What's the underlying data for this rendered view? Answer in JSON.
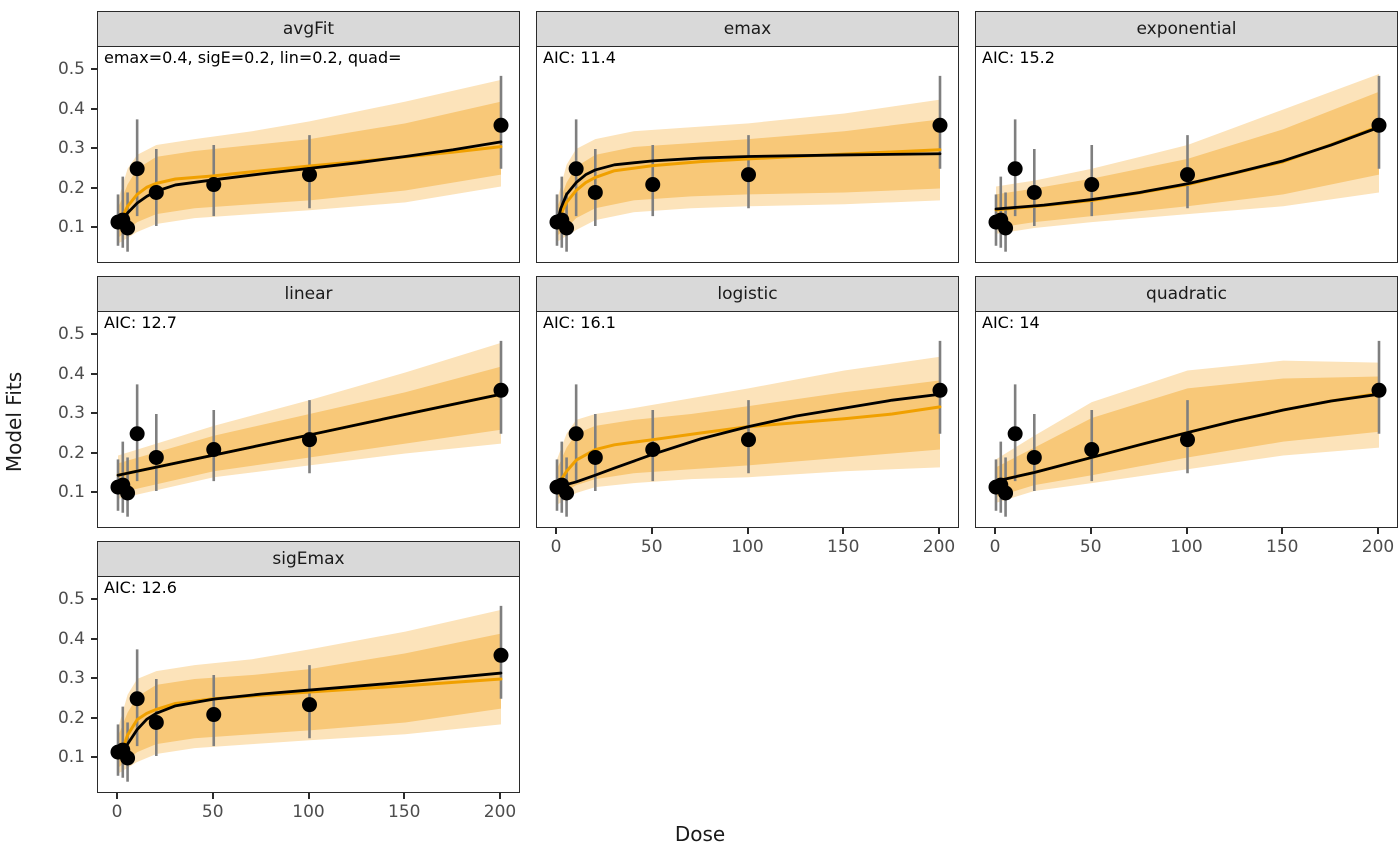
{
  "chart_data": {
    "type": "line",
    "title": "",
    "xlabel": "Dose",
    "ylabel": "Model Fits",
    "x_ticks": [
      0,
      50,
      100,
      150,
      200
    ],
    "y_ticks": [
      0.5,
      0.4,
      0.3,
      0.2,
      0.1
    ],
    "xlim": [
      0,
      200
    ],
    "ylim": [
      0.011,
      0.558
    ],
    "grid": false,
    "legend": "none",
    "colors": {
      "fit_line_black": "#000000",
      "median_line_orange": "#f0a000",
      "ribbon_inner": "#f8c878",
      "ribbon_outer": "#fce3ba",
      "errorbar_gray": "#7f7f7f",
      "strip_bg": "#d9d9d9",
      "panel_border": "#2b2b2b",
      "tick_text": "#4d4d4d"
    },
    "observations": {
      "dose": [
        0,
        2.5,
        5,
        10,
        20,
        50,
        100,
        200
      ],
      "rate": [
        0.115,
        0.12,
        0.1,
        0.25,
        0.19,
        0.21,
        0.235,
        0.36
      ],
      "ci_lo": [
        0.055,
        0.05,
        0.04,
        0.13,
        0.105,
        0.13,
        0.15,
        0.25
      ],
      "ci_hi": [
        0.185,
        0.23,
        0.19,
        0.375,
        0.3,
        0.31,
        0.335,
        0.485
      ]
    },
    "panels": [
      {
        "title": "avgFit",
        "annotation": "emax=0.4, sigE=0.2, lin=0.2, quad=",
        "row": 0,
        "col": 0,
        "y_axis": true,
        "x_axis": false,
        "black": [
          [
            0,
            0.105
          ],
          [
            3,
            0.125
          ],
          [
            5,
            0.138
          ],
          [
            10,
            0.163
          ],
          [
            15,
            0.18
          ],
          [
            20,
            0.193
          ],
          [
            30,
            0.209
          ],
          [
            50,
            0.222
          ],
          [
            75,
            0.237
          ],
          [
            100,
            0.251
          ],
          [
            125,
            0.265
          ],
          [
            150,
            0.281
          ],
          [
            175,
            0.298
          ],
          [
            200,
            0.318
          ]
        ],
        "orange": [
          [
            0,
            0.1
          ],
          [
            3,
            0.135
          ],
          [
            5,
            0.155
          ],
          [
            10,
            0.185
          ],
          [
            15,
            0.203
          ],
          [
            20,
            0.213
          ],
          [
            30,
            0.224
          ],
          [
            50,
            0.232
          ],
          [
            75,
            0.245
          ],
          [
            100,
            0.257
          ],
          [
            125,
            0.268
          ],
          [
            150,
            0.28
          ],
          [
            175,
            0.292
          ],
          [
            200,
            0.306
          ]
        ],
        "ribbon_x": [
          0,
          5,
          10,
          20,
          40,
          70,
          100,
          150,
          200
        ],
        "outer_hi": [
          0.17,
          0.25,
          0.285,
          0.31,
          0.325,
          0.345,
          0.37,
          0.42,
          0.475
        ],
        "inner_hi": [
          0.15,
          0.21,
          0.25,
          0.28,
          0.295,
          0.31,
          0.325,
          0.365,
          0.42
        ],
        "inner_lo": [
          0.075,
          0.095,
          0.115,
          0.135,
          0.15,
          0.16,
          0.17,
          0.195,
          0.235
        ],
        "outer_lo": [
          0.06,
          0.075,
          0.09,
          0.11,
          0.125,
          0.135,
          0.145,
          0.165,
          0.205
        ]
      },
      {
        "title": "emax",
        "annotation": "AIC: 11.4",
        "row": 0,
        "col": 1,
        "y_axis": false,
        "x_axis": false,
        "black": [
          [
            0,
            0.11
          ],
          [
            2,
            0.15
          ],
          [
            5,
            0.185
          ],
          [
            10,
            0.215
          ],
          [
            15,
            0.235
          ],
          [
            20,
            0.247
          ],
          [
            30,
            0.26
          ],
          [
            50,
            0.27
          ],
          [
            75,
            0.277
          ],
          [
            100,
            0.281
          ],
          [
            150,
            0.285
          ],
          [
            200,
            0.288
          ]
        ],
        "orange": [
          [
            0,
            0.105
          ],
          [
            2,
            0.135
          ],
          [
            5,
            0.165
          ],
          [
            10,
            0.195
          ],
          [
            15,
            0.215
          ],
          [
            20,
            0.228
          ],
          [
            30,
            0.245
          ],
          [
            50,
            0.258
          ],
          [
            75,
            0.268
          ],
          [
            100,
            0.275
          ],
          [
            150,
            0.287
          ],
          [
            200,
            0.298
          ]
        ],
        "ribbon_x": [
          0,
          5,
          10,
          20,
          40,
          70,
          100,
          150,
          200
        ],
        "outer_hi": [
          0.17,
          0.26,
          0.3,
          0.325,
          0.345,
          0.355,
          0.365,
          0.39,
          0.425
        ],
        "inner_hi": [
          0.15,
          0.215,
          0.255,
          0.285,
          0.305,
          0.315,
          0.325,
          0.345,
          0.375
        ],
        "inner_lo": [
          0.08,
          0.1,
          0.125,
          0.15,
          0.17,
          0.18,
          0.185,
          0.19,
          0.2
        ],
        "outer_lo": [
          0.065,
          0.08,
          0.095,
          0.12,
          0.14,
          0.15,
          0.155,
          0.16,
          0.17
        ]
      },
      {
        "title": "exponential",
        "annotation": "AIC: 15.2",
        "row": 0,
        "col": 2,
        "y_axis": false,
        "x_axis": false,
        "black": [
          [
            0,
            0.148
          ],
          [
            25,
            0.158
          ],
          [
            50,
            0.172
          ],
          [
            75,
            0.19
          ],
          [
            100,
            0.212
          ],
          [
            125,
            0.24
          ],
          [
            150,
            0.27
          ],
          [
            175,
            0.31
          ],
          [
            200,
            0.355
          ]
        ],
        "orange": [
          [
            0,
            0.146
          ],
          [
            25,
            0.157
          ],
          [
            50,
            0.17
          ],
          [
            75,
            0.189
          ],
          [
            100,
            0.21
          ],
          [
            125,
            0.239
          ],
          [
            150,
            0.268
          ],
          [
            175,
            0.311
          ],
          [
            200,
            0.357
          ]
        ],
        "ribbon_x": [
          0,
          20,
          50,
          100,
          150,
          200
        ],
        "outer_hi": [
          0.205,
          0.22,
          0.25,
          0.31,
          0.4,
          0.49
        ],
        "inner_hi": [
          0.185,
          0.2,
          0.225,
          0.275,
          0.35,
          0.445
        ],
        "inner_lo": [
          0.1,
          0.115,
          0.13,
          0.155,
          0.185,
          0.235
        ],
        "outer_lo": [
          0.085,
          0.1,
          0.115,
          0.135,
          0.155,
          0.19
        ]
      },
      {
        "title": "linear",
        "annotation": "AIC: 12.7",
        "row": 1,
        "col": 0,
        "y_axis": true,
        "x_axis": false,
        "black": [
          [
            0,
            0.145
          ],
          [
            50,
            0.196
          ],
          [
            100,
            0.247
          ],
          [
            150,
            0.299
          ],
          [
            200,
            0.35
          ]
        ],
        "orange": [
          [
            0,
            0.145
          ],
          [
            50,
            0.196
          ],
          [
            100,
            0.247
          ],
          [
            150,
            0.299
          ],
          [
            200,
            0.35
          ]
        ],
        "ribbon_x": [
          0,
          50,
          100,
          150,
          200
        ],
        "outer_hi": [
          0.195,
          0.27,
          0.335,
          0.405,
          0.48
        ],
        "inner_hi": [
          0.175,
          0.245,
          0.3,
          0.355,
          0.42
        ],
        "inner_lo": [
          0.1,
          0.155,
          0.19,
          0.225,
          0.26
        ],
        "outer_lo": [
          0.085,
          0.14,
          0.17,
          0.2,
          0.225
        ]
      },
      {
        "title": "logistic",
        "annotation": "AIC: 16.1",
        "row": 1,
        "col": 1,
        "y_axis": false,
        "x_axis": true,
        "black": [
          [
            0,
            0.115
          ],
          [
            10,
            0.128
          ],
          [
            20,
            0.145
          ],
          [
            30,
            0.163
          ],
          [
            50,
            0.198
          ],
          [
            75,
            0.237
          ],
          [
            100,
            0.268
          ],
          [
            125,
            0.295
          ],
          [
            150,
            0.315
          ],
          [
            175,
            0.335
          ],
          [
            200,
            0.35
          ]
        ],
        "orange": [
          [
            0,
            0.11
          ],
          [
            3,
            0.14
          ],
          [
            5,
            0.155
          ],
          [
            10,
            0.183
          ],
          [
            20,
            0.21
          ],
          [
            30,
            0.222
          ],
          [
            50,
            0.235
          ],
          [
            75,
            0.252
          ],
          [
            100,
            0.268
          ],
          [
            125,
            0.278
          ],
          [
            150,
            0.288
          ],
          [
            175,
            0.3
          ],
          [
            200,
            0.318
          ]
        ],
        "ribbon_x": [
          0,
          5,
          10,
          20,
          40,
          70,
          100,
          150,
          200
        ],
        "outer_hi": [
          0.185,
          0.25,
          0.285,
          0.3,
          0.315,
          0.34,
          0.365,
          0.41,
          0.445
        ],
        "inner_hi": [
          0.16,
          0.215,
          0.25,
          0.27,
          0.285,
          0.3,
          0.32,
          0.355,
          0.385
        ],
        "inner_lo": [
          0.085,
          0.105,
          0.12,
          0.135,
          0.15,
          0.16,
          0.17,
          0.19,
          0.21
        ],
        "outer_lo": [
          0.07,
          0.085,
          0.1,
          0.115,
          0.125,
          0.135,
          0.14,
          0.155,
          0.165
        ]
      },
      {
        "title": "quadratic",
        "annotation": "AIC: 14",
        "row": 1,
        "col": 2,
        "y_axis": false,
        "x_axis": true,
        "black": [
          [
            0,
            0.13
          ],
          [
            20,
            0.152
          ],
          [
            50,
            0.19
          ],
          [
            75,
            0.222
          ],
          [
            100,
            0.253
          ],
          [
            125,
            0.283
          ],
          [
            150,
            0.31
          ],
          [
            175,
            0.333
          ],
          [
            200,
            0.35
          ]
        ],
        "orange": [
          [
            0,
            0.13
          ],
          [
            20,
            0.152
          ],
          [
            50,
            0.19
          ],
          [
            75,
            0.222
          ],
          [
            100,
            0.253
          ],
          [
            125,
            0.283
          ],
          [
            150,
            0.31
          ],
          [
            175,
            0.333
          ],
          [
            200,
            0.352
          ]
        ],
        "ribbon_x": [
          0,
          20,
          50,
          100,
          150,
          200
        ],
        "outer_hi": [
          0.185,
          0.245,
          0.33,
          0.41,
          0.435,
          0.43
        ],
        "inner_hi": [
          0.165,
          0.215,
          0.29,
          0.365,
          0.39,
          0.395
        ],
        "inner_lo": [
          0.09,
          0.12,
          0.145,
          0.19,
          0.23,
          0.255
        ],
        "outer_lo": [
          0.075,
          0.105,
          0.125,
          0.16,
          0.195,
          0.215
        ]
      },
      {
        "title": "sigEmax",
        "annotation": "AIC: 12.6",
        "row": 2,
        "col": 0,
        "y_axis": true,
        "x_axis": true,
        "black": [
          [
            0,
            0.105
          ],
          [
            3,
            0.12
          ],
          [
            5,
            0.135
          ],
          [
            10,
            0.172
          ],
          [
            15,
            0.198
          ],
          [
            20,
            0.213
          ],
          [
            30,
            0.232
          ],
          [
            50,
            0.249
          ],
          [
            75,
            0.262
          ],
          [
            100,
            0.272
          ],
          [
            150,
            0.292
          ],
          [
            200,
            0.315
          ]
        ],
        "orange": [
          [
            0,
            0.1
          ],
          [
            3,
            0.13
          ],
          [
            5,
            0.158
          ],
          [
            10,
            0.197
          ],
          [
            15,
            0.213
          ],
          [
            20,
            0.223
          ],
          [
            30,
            0.238
          ],
          [
            50,
            0.25
          ],
          [
            75,
            0.259
          ],
          [
            100,
            0.267
          ],
          [
            150,
            0.283
          ],
          [
            200,
            0.3
          ]
        ],
        "ribbon_x": [
          0,
          5,
          10,
          20,
          40,
          70,
          100,
          150,
          200
        ],
        "outer_hi": [
          0.175,
          0.26,
          0.3,
          0.32,
          0.335,
          0.35,
          0.375,
          0.42,
          0.475
        ],
        "inner_hi": [
          0.155,
          0.215,
          0.255,
          0.285,
          0.3,
          0.31,
          0.325,
          0.365,
          0.415
        ],
        "inner_lo": [
          0.075,
          0.095,
          0.115,
          0.135,
          0.15,
          0.16,
          0.17,
          0.19,
          0.225
        ],
        "outer_lo": [
          0.06,
          0.075,
          0.09,
          0.11,
          0.125,
          0.135,
          0.145,
          0.16,
          0.185
        ]
      }
    ]
  }
}
